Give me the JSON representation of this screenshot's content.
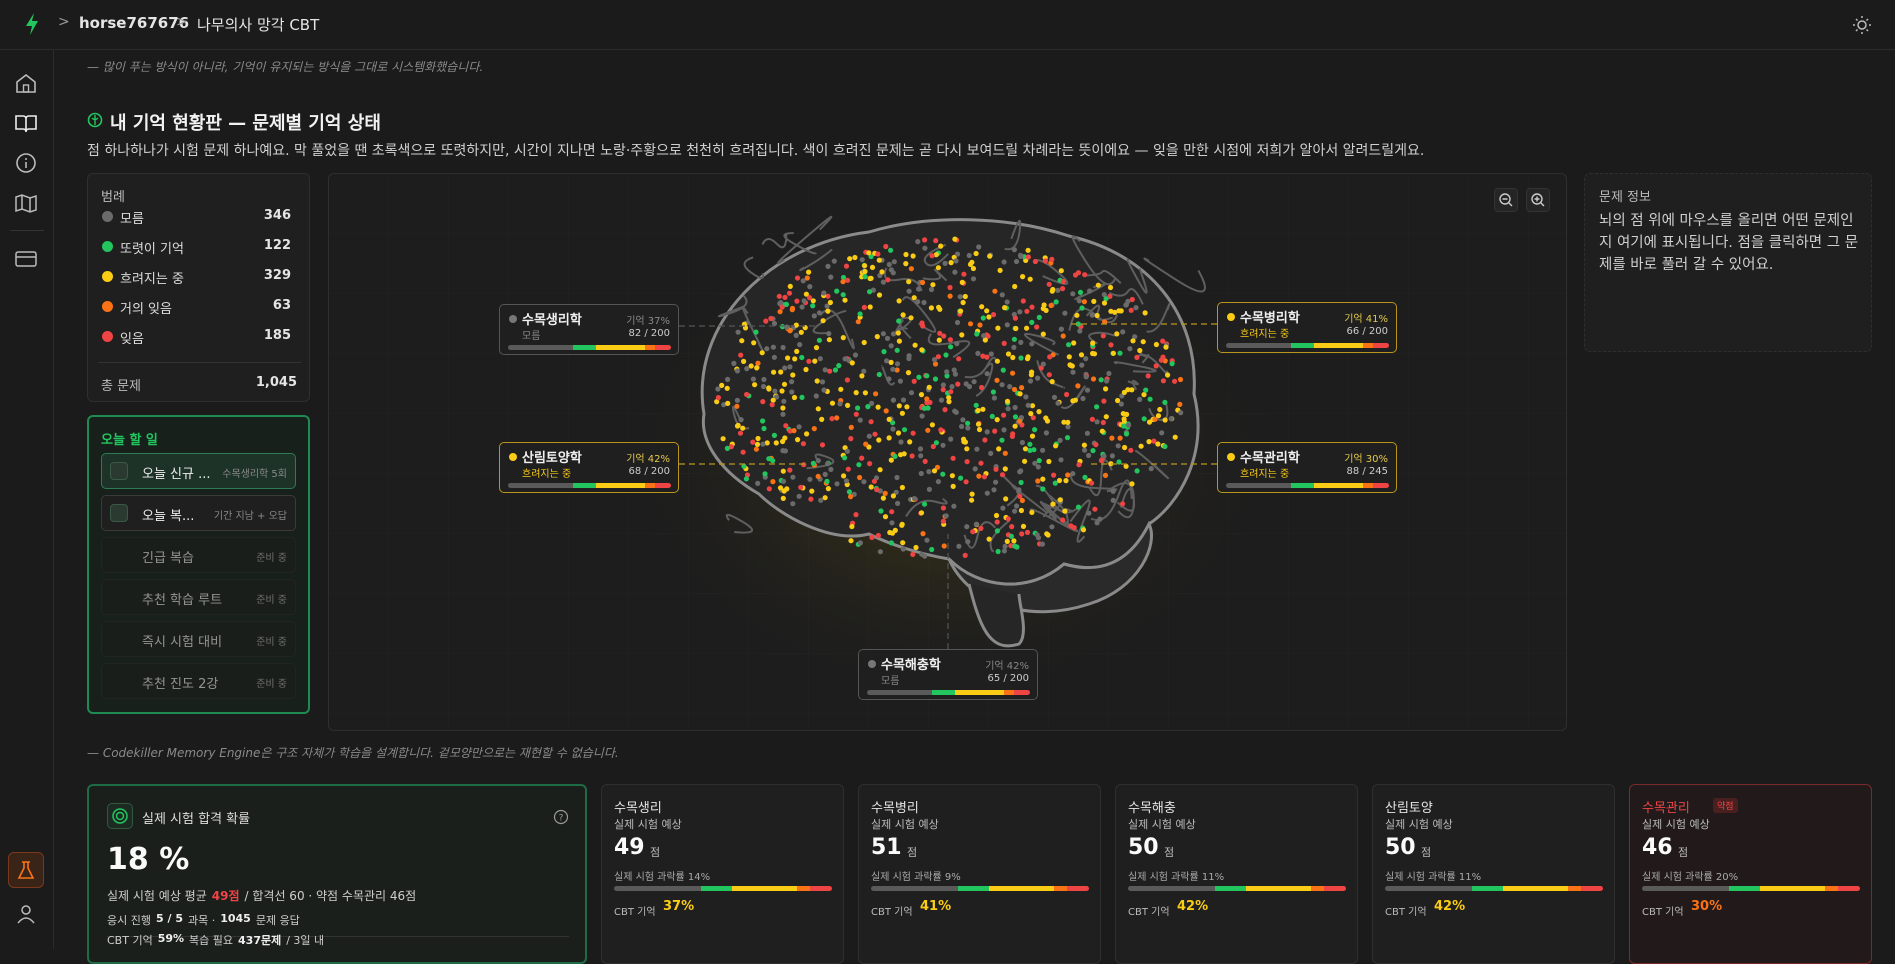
{
  "topbar": {
    "user": "horse767676",
    "app": "나무의사 망각 CBT"
  },
  "intro": "— 많이 푸는 방식이 아니라, 기억이 유지되는 방식을 그대로 시스템화했습니다.",
  "section": {
    "title": "내 기억 현황판 — 문제별 기억 상태",
    "description": "점 하나하나가 시험 문제 하나예요. 막 풀었을 땐 초록색으로 또렷하지만, 시간이 지나면 노랑·주황으로 천천히 흐려집니다. 색이 흐려진 문제는 곧 다시 보여드릴 차례라는 뜻이에요 — 잊을 만한 시점에 저희가 알아서 알려드릴게요."
  },
  "legend": {
    "title": "범례",
    "items": [
      {
        "label": "모름",
        "count": "346",
        "color": "#6b6b6b"
      },
      {
        "label": "또렷이 기억",
        "count": "122",
        "color": "#22c55e"
      },
      {
        "label": "흐려지는 중",
        "count": "329",
        "color": "#facc15"
      },
      {
        "label": "거의 잊음",
        "count": "63",
        "color": "#f97316"
      },
      {
        "label": "잊음",
        "count": "185",
        "color": "#ef4444"
      }
    ],
    "total_label": "총 문제",
    "total": "1,045"
  },
  "today": {
    "title": "오늘 할 일",
    "items": [
      {
        "label": "오늘 신규 ...",
        "note": "수목생리학 5회"
      },
      {
        "label": "오늘 복...",
        "note": "기간 지남 + 오답"
      },
      {
        "label": "긴급 복습",
        "note": "준비 중"
      },
      {
        "label": "추천 학습 루트",
        "note": "준비 중"
      },
      {
        "label": "즉시 시험 대비",
        "note": "준비 중"
      },
      {
        "label": "추천 진도 2강",
        "note": "준비 중"
      }
    ]
  },
  "brain": {
    "regions": [
      {
        "name": "수목생리학",
        "status": "모름",
        "memory": "기억 37%",
        "progress": "82 / 200"
      },
      {
        "name": "수목병리학",
        "status": "흐려지는 중",
        "memory": "기억 41%",
        "progress": "66 / 200"
      },
      {
        "name": "산림토양학",
        "status": "흐려지는 중",
        "memory": "기억 42%",
        "progress": "68 / 200"
      },
      {
        "name": "수목관리학",
        "status": "흐려지는 중",
        "memory": "기억 30%",
        "progress": "88 / 245"
      },
      {
        "name": "수목해충학",
        "status": "모름",
        "memory": "기억 42%",
        "progress": "65 / 200"
      }
    ]
  },
  "info": {
    "title": "문제 정보",
    "text": "뇌의 점 위에 마우스를 올리면 어떤 문제인지 여기에 표시됩니다. 점을 클릭하면 그 문제를 바로 풀러 갈 수 있어요."
  },
  "footnote": "— Codekiller Memory Engine은 구조 자체가 학습을 설계합니다. 겉모양만으로는 재현할 수 없습니다.",
  "pass": {
    "title": "실제 시험 합격 확률",
    "value": "18 %",
    "lines": [
      [
        "실제 시험 예상 평균",
        "49점",
        "/ 합격선 60 · 약점 수목관리 46점"
      ],
      [
        "응시 진행",
        "5 / 5",
        "과목 ·",
        "1045",
        "문제 응답"
      ],
      [
        "CBT 기억",
        "59%",
        "복습 필요",
        "437문제",
        "/ 3일 내"
      ]
    ]
  },
  "cards": [
    {
      "name": "수목생리",
      "label": "실제 시험 예상",
      "score": "49",
      "unit": "점",
      "fail": "실제 시험 과락률 14%",
      "memory_label": "CBT 기억",
      "memory": "37%"
    },
    {
      "name": "수목병리",
      "label": "실제 시험 예상",
      "score": "51",
      "unit": "점",
      "fail": "실제 시험 과락률 9%",
      "memory_label": "CBT 기억",
      "memory": "41%"
    },
    {
      "name": "수목해충",
      "label": "실제 시험 예상",
      "score": "50",
      "unit": "점",
      "fail": "실제 시험 과락률 11%",
      "memory_label": "CBT 기억",
      "memory": "42%"
    },
    {
      "name": "산림토양",
      "label": "실제 시험 예상",
      "score": "50",
      "unit": "점",
      "fail": "실제 시험 과락률 11%",
      "memory_label": "CBT 기억",
      "memory": "42%"
    },
    {
      "name": "수목관리",
      "tag": "약점",
      "label": "실제 시험 예상",
      "score": "46",
      "unit": "점",
      "fail": "실제 시험 과락률 20%",
      "memory_label": "CBT 기억",
      "memory": "30%"
    }
  ]
}
